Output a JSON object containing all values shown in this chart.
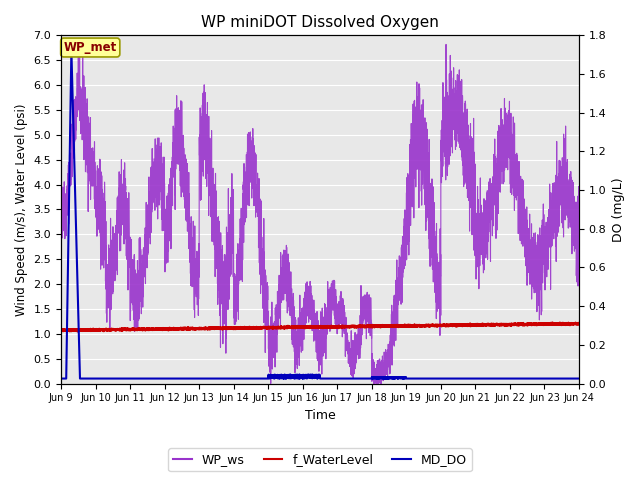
{
  "title": "WP miniDOT Dissolved Oxygen",
  "xlabel": "Time",
  "ylabel_left": "Wind Speed (m/s), Water Level (psi)",
  "ylabel_right": "DO (mg/L)",
  "annotation_text": "WP_met",
  "ylim_left": [
    0.0,
    7.0
  ],
  "ylim_right": [
    0.0,
    1.8
  ],
  "yticks_left": [
    0.0,
    0.5,
    1.0,
    1.5,
    2.0,
    2.5,
    3.0,
    3.5,
    4.0,
    4.5,
    5.0,
    5.5,
    6.0,
    6.5,
    7.0
  ],
  "yticks_right": [
    0.0,
    0.2,
    0.4,
    0.6,
    0.8,
    1.0,
    1.2,
    1.4,
    1.6,
    1.8
  ],
  "xtick_labels": [
    "Jun 9",
    "Jun 10",
    "Jun 11",
    "Jun 12",
    "Jun 13",
    "Jun 14",
    "Jun 15",
    "Jun 16",
    "Jun 17",
    "Jun 18",
    "Jun 19",
    "Jun 20",
    "Jun 21",
    "Jun 22",
    "Jun 23",
    "Jun 24"
  ],
  "color_ws": "#9933CC",
  "color_wl": "#CC0000",
  "color_do": "#0000BB",
  "legend_labels": [
    "WP_ws",
    "f_WaterLevel",
    "MD_DO"
  ],
  "background_color": "#E8E8E8",
  "annotation_bg": "#FFFF99",
  "annotation_border": "#999900",
  "annotation_text_color": "#880000",
  "grid_color": "#FFFFFF"
}
